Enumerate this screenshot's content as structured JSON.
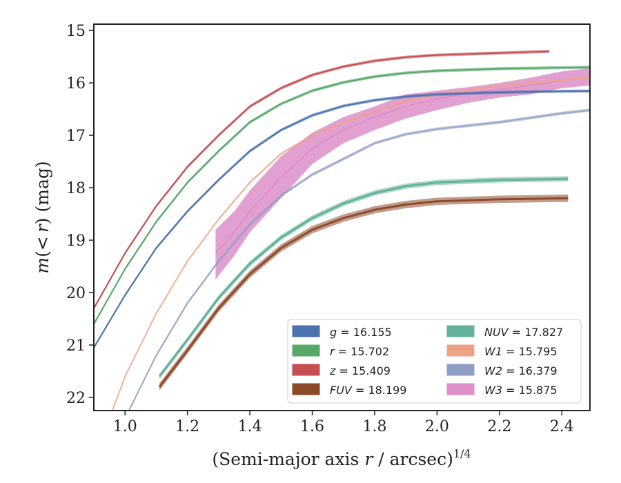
{
  "chart_data": {
    "type": "line",
    "xlabel": "(Semi-major axis r / arcsec)^{1/4}",
    "xlabel_parts": {
      "pre": "(Semi-major axis ",
      "var": "r",
      "post": " / arcsec)",
      "exp": "1/4"
    },
    "ylabel": "m(< r) (mag)",
    "ylabel_parts": {
      "m": "m",
      "open": "(",
      "lt": "<",
      "r": "r",
      "close": ")",
      "unit": " (mag)"
    },
    "xlim": [
      0.9,
      2.49
    ],
    "ylim": [
      22.25,
      14.88
    ],
    "y_inverted": true,
    "grid": false,
    "legend_position": "lower-right",
    "x_ticks": [
      1.0,
      1.2,
      1.4,
      1.6,
      1.8,
      2.0,
      2.2,
      2.4
    ],
    "x_tick_labels": [
      "1.0",
      "1.2",
      "1.4",
      "1.6",
      "1.8",
      "2.0",
      "2.2",
      "2.4"
    ],
    "y_ticks": [
      15,
      16,
      17,
      18,
      19,
      20,
      21,
      22
    ],
    "y_tick_labels": [
      "15",
      "16",
      "17",
      "18",
      "19",
      "20",
      "21",
      "22"
    ],
    "series": [
      {
        "name": "g = 16.155",
        "legend_var": "g",
        "legend_value": "16.155",
        "color": "#4c72b0",
        "band": 0.03,
        "x": [
          0.9,
          1.0,
          1.1,
          1.2,
          1.3,
          1.4,
          1.5,
          1.6,
          1.7,
          1.8,
          1.9,
          2.0,
          2.2,
          2.4,
          2.49
        ],
        "y": [
          21.05,
          20.05,
          19.15,
          18.45,
          17.85,
          17.3,
          16.9,
          16.62,
          16.44,
          16.33,
          16.26,
          16.22,
          16.18,
          16.16,
          16.155
        ]
      },
      {
        "name": "r = 15.702",
        "legend_var": "r",
        "legend_value": "15.702",
        "color": "#55a868",
        "band": 0.03,
        "x": [
          0.9,
          1.0,
          1.1,
          1.2,
          1.3,
          1.4,
          1.5,
          1.6,
          1.7,
          1.8,
          1.9,
          2.0,
          2.2,
          2.4,
          2.49
        ],
        "y": [
          20.6,
          19.55,
          18.65,
          17.9,
          17.3,
          16.75,
          16.4,
          16.15,
          15.99,
          15.88,
          15.81,
          15.77,
          15.73,
          15.71,
          15.702
        ]
      },
      {
        "name": "z = 15.409",
        "legend_var": "z",
        "legend_value": "15.409",
        "color": "#c44e52",
        "band": 0.03,
        "x": [
          0.9,
          1.0,
          1.1,
          1.2,
          1.3,
          1.4,
          1.5,
          1.6,
          1.7,
          1.8,
          1.9,
          2.0,
          2.2,
          2.36
        ],
        "y": [
          20.3,
          19.25,
          18.35,
          17.6,
          17.0,
          16.45,
          16.1,
          15.85,
          15.69,
          15.58,
          15.51,
          15.47,
          15.43,
          15.4
        ]
      },
      {
        "name": "FUV = 18.199",
        "legend_var": "FUV",
        "legend_value": "18.199",
        "color": "#8c4a2a",
        "band": 0.07,
        "x": [
          1.11,
          1.2,
          1.3,
          1.4,
          1.5,
          1.6,
          1.7,
          1.8,
          1.9,
          2.0,
          2.2,
          2.42
        ],
        "y": [
          21.8,
          21.1,
          20.3,
          19.65,
          19.15,
          18.8,
          18.58,
          18.42,
          18.32,
          18.26,
          18.22,
          18.2
        ]
      },
      {
        "name": "NUV = 17.827",
        "legend_var": "NUV",
        "legend_value": "17.827",
        "color": "#64b29a",
        "band": 0.05,
        "x": [
          1.11,
          1.2,
          1.3,
          1.4,
          1.5,
          1.6,
          1.7,
          1.8,
          1.9,
          2.0,
          2.2,
          2.42
        ],
        "y": [
          21.6,
          20.9,
          20.1,
          19.45,
          18.95,
          18.58,
          18.3,
          18.1,
          17.97,
          17.9,
          17.85,
          17.83
        ]
      },
      {
        "name": "W1 = 15.795",
        "legend_var": "W1",
        "legend_value": "15.795",
        "color": "#eea387",
        "band": 0.02,
        "x": [
          0.95,
          1.0,
          1.1,
          1.2,
          1.3,
          1.4,
          1.5,
          1.6,
          1.7,
          1.8,
          1.9,
          2.0,
          2.2,
          2.49
        ],
        "y": [
          22.4,
          21.6,
          20.4,
          19.4,
          18.6,
          17.9,
          17.35,
          17.0,
          16.75,
          16.55,
          16.35,
          16.22,
          16.05,
          15.9
        ]
      },
      {
        "name": "W2 = 16.379",
        "legend_var": "W2",
        "legend_value": "16.379",
        "color": "#8f9ec4",
        "band": 0.03,
        "x": [
          1.0,
          1.1,
          1.2,
          1.3,
          1.4,
          1.5,
          1.6,
          1.7,
          1.8,
          1.9,
          2.0,
          2.2,
          2.4,
          2.49
        ],
        "y": [
          22.4,
          21.2,
          20.2,
          19.4,
          18.7,
          18.15,
          17.75,
          17.45,
          17.15,
          16.98,
          16.88,
          16.75,
          16.58,
          16.52
        ]
      },
      {
        "name": "W3 = 15.875",
        "legend_var": "W3",
        "legend_value": "15.875",
        "color": "#dd8fc8",
        "band": 0.0,
        "x": [
          1.29,
          1.35,
          1.4,
          1.5,
          1.6,
          1.7,
          1.8,
          1.9,
          2.0,
          2.1,
          2.2,
          2.3,
          2.4,
          2.49
        ],
        "y": [
          19.25,
          18.85,
          18.45,
          17.8,
          17.25,
          16.9,
          16.65,
          16.45,
          16.3,
          16.2,
          16.12,
          16.05,
          15.95,
          15.9
        ],
        "lo": [
          18.8,
          18.45,
          18.05,
          17.4,
          16.95,
          16.65,
          16.45,
          16.22,
          16.15,
          16.08,
          16.0,
          15.9,
          15.78,
          15.72
        ],
        "hi": [
          19.75,
          19.3,
          18.85,
          18.2,
          17.55,
          17.15,
          16.9,
          16.68,
          16.52,
          16.38,
          16.28,
          16.22,
          16.1,
          16.05
        ]
      }
    ]
  }
}
